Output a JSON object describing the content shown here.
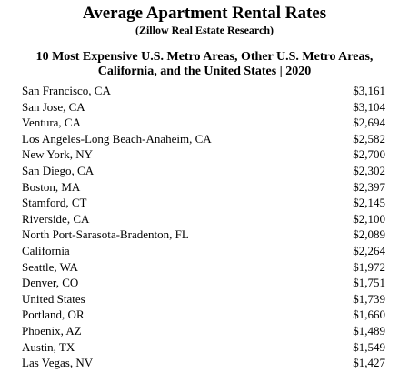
{
  "header": {
    "title": "Average Apartment Rental Rates",
    "source": "(Zillow Real Estate Research)",
    "subtitle_line1": "10 Most Expensive U.S. Metro Areas, Other U.S. Metro Areas,",
    "subtitle_line2": "California, and the United States | 2020"
  },
  "rows": [
    {
      "area": "San Francisco, CA",
      "rent": "$3,161"
    },
    {
      "area": "San Jose, CA",
      "rent": "$3,104"
    },
    {
      "area": "Ventura, CA",
      "rent": "$2,694"
    },
    {
      "area": "Los Angeles-Long Beach-Anaheim, CA",
      "rent": "$2,582"
    },
    {
      "area": "New York, NY",
      "rent": "$2,700"
    },
    {
      "area": "San Diego, CA",
      "rent": "$2,302"
    },
    {
      "area": "Boston, MA",
      "rent": "$2,397"
    },
    {
      "area": "Stamford, CT",
      "rent": "$2,145"
    },
    {
      "area": "Riverside, CA",
      "rent": "$2,100"
    },
    {
      "area": "North Port-Sarasota-Bradenton, FL",
      "rent": "$2,089"
    },
    {
      "area": "California",
      "rent": "$2,264"
    },
    {
      "area": "Seattle, WA",
      "rent": "$1,972"
    },
    {
      "area": "Denver, CO",
      "rent": "$1,751"
    },
    {
      "area": "United States",
      "rent": "$1,739"
    },
    {
      "area": "Portland, OR",
      "rent": "$1,660"
    },
    {
      "area": "Phoenix, AZ",
      "rent": "$1,489"
    },
    {
      "area": "Austin, TX",
      "rent": "$1,549"
    },
    {
      "area": "Las Vegas, NV",
      "rent": "$1,427"
    }
  ]
}
